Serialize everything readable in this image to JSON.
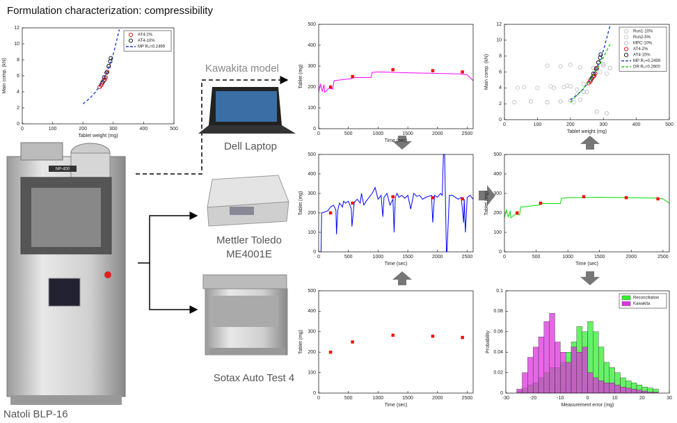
{
  "title": "Formulation characterization: compressibility",
  "labels": {
    "kawakita_model": "Kawakita model",
    "laptop": "Dell Laptop",
    "balance": [
      "Mettler Toledo",
      "ME4001E"
    ],
    "tester": "Sotax Auto Test 4",
    "press": "Natoli BLP-16",
    "press_plate": "NP-400"
  },
  "charts": [
    {
      "type": "scatter",
      "xlabel": "Tablet weight (mg)",
      "ylabel": "Main comp. (kN)",
      "xlim": [
        0,
        500
      ],
      "ylim": [
        0,
        12
      ],
      "xticks": [
        0,
        100,
        200,
        300,
        400,
        500
      ],
      "yticks": [
        0,
        2,
        4,
        6,
        8,
        10,
        12
      ],
      "legend": "upper right",
      "series": [
        {
          "name": "AT4-2%",
          "color": "#e00000",
          "marker": "circle",
          "x": [
            255,
            262,
            268,
            275,
            280,
            285,
            260,
            272
          ],
          "values": [
            4.6,
            5.0,
            5.4,
            5.8,
            6.5,
            7.2,
            4.8,
            5.5
          ]
        },
        {
          "name": "AT4-10%",
          "color": "#000000",
          "marker": "circle",
          "x": [
            265,
            270,
            278,
            285,
            290,
            292
          ],
          "values": [
            5.2,
            5.8,
            6.4,
            7.2,
            7.8,
            8.2
          ]
        },
        {
          "name": "MP R₂=0.2499",
          "color": "#1f3fd8",
          "linestyle": "dashed",
          "x": [
            200,
            220,
            240,
            260,
            280,
            300,
            320
          ],
          "values": [
            2.5,
            3.1,
            3.9,
            5.0,
            6.5,
            8.7,
            11.8
          ]
        }
      ]
    },
    {
      "type": "line",
      "xlabel": "Time (sec)",
      "ylabel": "Tablet (mg)",
      "xlim": [
        0,
        2600
      ],
      "ylim": [
        0,
        500
      ],
      "xticks": [
        0,
        500,
        1000,
        1500,
        2000,
        2500
      ],
      "yticks": [
        0,
        100,
        200,
        300,
        400,
        500
      ],
      "series": [
        {
          "color": "#ff00ff",
          "linestyle": "solid",
          "x": [
            0,
            30,
            60,
            90,
            100,
            180,
            200,
            240,
            250,
            260,
            400,
            550,
            600,
            880,
            900,
            1000,
            1500,
            2000,
            2400,
            2500,
            2600
          ],
          "values": [
            175,
            215,
            180,
            210,
            175,
            195,
            192,
            190,
            220,
            230,
            235,
            240,
            245,
            245,
            270,
            272,
            268,
            265,
            262,
            258,
            230
          ]
        },
        {
          "color": "#ff0000",
          "marker": "square",
          "x": [
            200,
            570,
            1250,
            1920,
            2420
          ],
          "values": [
            200,
            250,
            283,
            278,
            272
          ]
        }
      ]
    },
    {
      "type": "line",
      "xlabel": "Time (sec)",
      "ylabel": "Tablet (mg)",
      "xlim": [
        0,
        2600
      ],
      "ylim": [
        0,
        500
      ],
      "xticks": [
        0,
        500,
        1000,
        1500,
        2000,
        2500
      ],
      "yticks": [
        0,
        100,
        200,
        300,
        400,
        500
      ],
      "series": [
        {
          "color": "#0000ff",
          "linestyle": "solid",
          "x": [
            0,
            40,
            50,
            60,
            100,
            150,
            200,
            250,
            290,
            300,
            320,
            350,
            380,
            400,
            420,
            450,
            500,
            550,
            560,
            600,
            650,
            700,
            720,
            760,
            800,
            850,
            900,
            950,
            1000,
            1050,
            1080,
            1100,
            1150,
            1200,
            1250,
            1270,
            1290,
            1320,
            1350,
            1400,
            1450,
            1500,
            1550,
            1600,
            1650,
            1700,
            1750,
            1800,
            1850,
            1900,
            1920,
            1950,
            2000,
            2050,
            2080,
            2100,
            2120,
            2150,
            2160,
            2200,
            2250,
            2300,
            2350,
            2400,
            2440,
            2450,
            2470,
            2500,
            2550,
            2600
          ],
          "values": [
            0,
            0,
            200,
            200,
            205,
            210,
            230,
            240,
            215,
            90,
            210,
            250,
            240,
            230,
            260,
            250,
            260,
            220,
            130,
            255,
            270,
            250,
            300,
            240,
            260,
            280,
            300,
            330,
            270,
            290,
            180,
            280,
            300,
            240,
            270,
            100,
            280,
            300,
            280,
            290,
            275,
            290,
            220,
            300,
            285,
            290,
            270,
            280,
            285,
            290,
            150,
            290,
            280,
            300,
            290,
            500,
            500,
            0,
            0,
            290,
            290,
            280,
            270,
            280,
            150,
            270,
            100,
            280,
            290,
            270
          ]
        },
        {
          "color": "#ff0000",
          "marker": "square",
          "x": [
            200,
            570,
            1250,
            1920,
            2420
          ],
          "values": [
            200,
            250,
            283,
            278,
            272
          ]
        }
      ]
    },
    {
      "type": "scatter",
      "xlabel": "Time (sec)",
      "ylabel": "Tablet (mg)",
      "xlim": [
        0,
        2600
      ],
      "ylim": [
        0,
        500
      ],
      "xticks": [
        0,
        500,
        1000,
        1500,
        2000,
        2500
      ],
      "yticks": [
        0,
        100,
        200,
        300,
        400,
        500
      ],
      "series": [
        {
          "color": "#ff0000",
          "marker": "square",
          "x": [
            200,
            570,
            1250,
            1920,
            2420
          ],
          "values": [
            200,
            250,
            283,
            278,
            272
          ]
        }
      ]
    },
    {
      "type": "scatter",
      "xlabel": "Tablet weight (mg)",
      "ylabel": "Main comp. (kN)",
      "xlim": [
        0,
        500
      ],
      "ylim": [
        0,
        12
      ],
      "xticks": [
        0,
        100,
        200,
        300,
        400,
        500
      ],
      "yticks": [
        0,
        2,
        4,
        6,
        8,
        10,
        12
      ],
      "legend": "upper right",
      "series": [
        {
          "name": "Run1-10%",
          "color": "#c0c0c0",
          "marker": "circle",
          "x": [
            150,
            180,
            200,
            220,
            240,
            260,
            280,
            300,
            250,
            230,
            210,
            130,
            170,
            200,
            230
          ],
          "values": [
            4,
            4.1,
            4.2,
            3.8,
            4.5,
            5.0,
            6.2,
            6.8,
            3.5,
            2.5,
            2.2,
            6.8,
            6.7,
            6.9,
            6.6
          ]
        },
        {
          "name": "Run2-5%",
          "color": "#c8c8c8",
          "marker": "circle",
          "x": [
            40,
            60,
            100,
            140,
            190,
            220,
            260,
            290,
            310,
            270
          ],
          "values": [
            4,
            4.1,
            4,
            4.2,
            4.3,
            3.2,
            4.8,
            6,
            5.8,
            5.5
          ]
        },
        {
          "name": "MPC-10%",
          "color": "#b8b8b8",
          "marker": "circle",
          "x": [
            30,
            80,
            130,
            170,
            200,
            240,
            270,
            300,
            320,
            280,
            310
          ],
          "values": [
            2.2,
            2.3,
            2.2,
            2.3,
            2.4,
            3.5,
            6.5,
            7,
            6.5,
            1,
            0.8
          ]
        },
        {
          "name": "AT4-2%",
          "color": "#e00000",
          "marker": "circle",
          "x": [
            255,
            262,
            268,
            275,
            280,
            285,
            260,
            272
          ],
          "values": [
            4.6,
            5.0,
            5.4,
            5.8,
            6.5,
            7.2,
            4.8,
            5.5
          ]
        },
        {
          "name": "AT4-10%",
          "color": "#000000",
          "marker": "circle",
          "x": [
            265,
            270,
            278,
            285,
            290,
            292
          ],
          "values": [
            5.2,
            5.8,
            6.4,
            7.2,
            7.8,
            8.2
          ]
        },
        {
          "name": "MP R₂=0.2499",
          "color": "#1f3fd8",
          "linestyle": "dashed",
          "x": [
            200,
            220,
            240,
            260,
            280,
            300,
            320
          ],
          "values": [
            2.5,
            3.1,
            3.9,
            5.0,
            6.5,
            8.7,
            11.8
          ]
        },
        {
          "name": "DR R₂=0.2600",
          "color": "#22cc22",
          "linestyle": "dashed",
          "x": [
            200,
            230,
            260,
            290,
            320
          ],
          "values": [
            2.2,
            3.5,
            5,
            7,
            9.5
          ]
        }
      ]
    },
    {
      "type": "line",
      "xlabel": "Time (sec)",
      "ylabel": "Tablet (mg)",
      "xlim": [
        0,
        2600
      ],
      "ylim": [
        0,
        500
      ],
      "xticks": [
        0,
        500,
        1000,
        1500,
        2000,
        2500
      ],
      "yticks": [
        0,
        100,
        200,
        300,
        400,
        500
      ],
      "series": [
        {
          "color": "#00dd00",
          "linestyle": "solid",
          "x": [
            0,
            30,
            60,
            90,
            100,
            180,
            200,
            240,
            250,
            260,
            400,
            550,
            600,
            880,
            900,
            1000,
            1500,
            2000,
            2400,
            2500,
            2600
          ],
          "values": [
            175,
            215,
            180,
            210,
            175,
            195,
            192,
            190,
            220,
            230,
            235,
            240,
            248,
            248,
            275,
            278,
            280,
            278,
            276,
            272,
            250
          ]
        },
        {
          "color": "#ff0000",
          "marker": "square",
          "x": [
            200,
            570,
            1250,
            1920,
            2420
          ],
          "values": [
            200,
            250,
            283,
            278,
            272
          ]
        }
      ]
    },
    {
      "type": "histogram",
      "xlabel": "Measurement error (mg)",
      "ylabel": "Probability",
      "xlim": [
        -30,
        30
      ],
      "ylim": [
        0,
        0.1
      ],
      "xticks": [
        -30,
        -20,
        -10,
        0,
        10,
        20,
        30
      ],
      "yticks": [
        0,
        0.02,
        0.04,
        0.06,
        0.08,
        0.1
      ],
      "legend": "upper right",
      "bins": [
        -26,
        -24,
        -22,
        -20,
        -18,
        -16,
        -14,
        -12,
        -10,
        -8,
        -6,
        -4,
        -2,
        0,
        2,
        4,
        6,
        8,
        10,
        12,
        14,
        16,
        18,
        20,
        22,
        24,
        26
      ],
      "series": [
        {
          "name": "Reconciliation",
          "color": "#33ee33",
          "values": [
            0.002,
            0.005,
            0.008,
            0.01,
            0.015,
            0.02,
            0.025,
            0.025,
            0.03,
            0.04,
            0.05,
            0.065,
            0.06,
            0.07,
            0.06,
            0.045,
            0.03,
            0.025,
            0.02,
            0.015,
            0.012,
            0.01,
            0.008,
            0.006,
            0.005,
            0.004
          ]
        },
        {
          "name": "Kawakita",
          "color": "#dd33dd",
          "values": [
            0.004,
            0.02,
            0.035,
            0.045,
            0.055,
            0.07,
            0.078,
            0.05,
            0.04,
            0.03,
            0.045,
            0.04,
            0.045,
            0.02,
            0.015,
            0.012,
            0.01,
            0.01,
            0.008,
            0.006,
            0.005,
            0.004,
            0.003,
            0.002,
            0.001,
            0.001
          ]
        }
      ]
    }
  ]
}
